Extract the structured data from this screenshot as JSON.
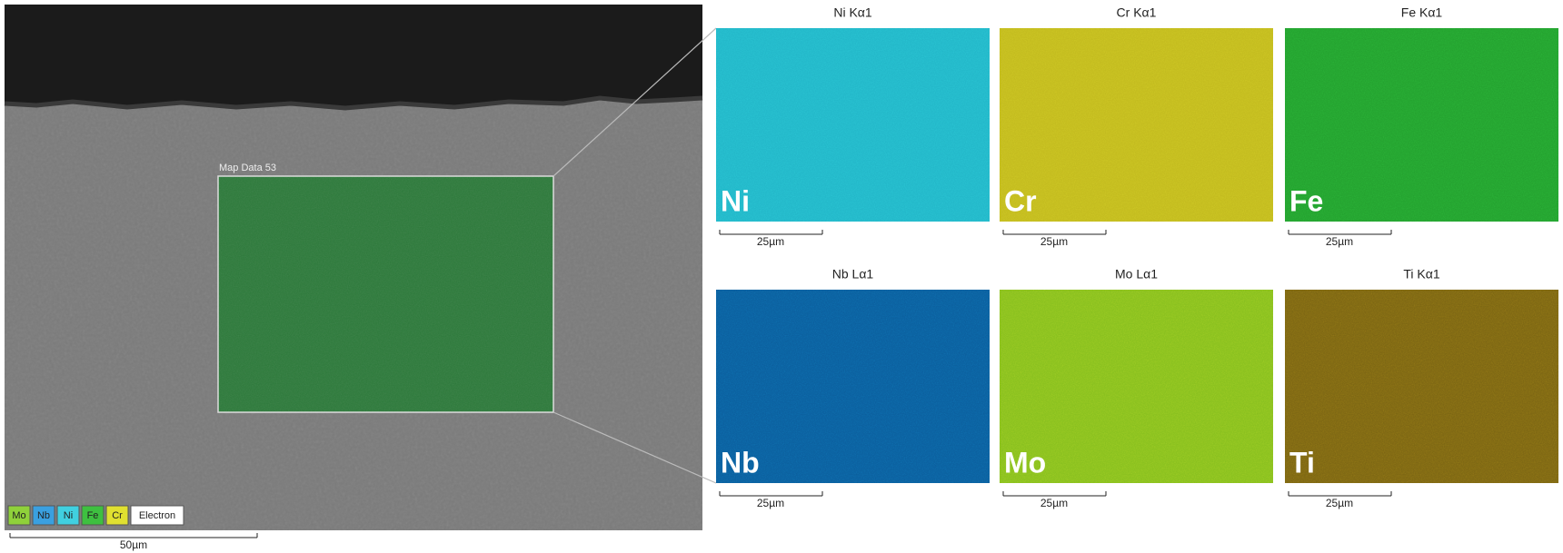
{
  "overview": {
    "map_label": "Map Data 53",
    "scale_label": "50µm",
    "legend": [
      "Mo",
      "Nb",
      "Ni",
      "Fe",
      "Cr",
      "Electron"
    ]
  },
  "maps": [
    {
      "title": "Ni Kα1",
      "symbol": "Ni",
      "scale_label": "25µm"
    },
    {
      "title": "Cr Kα1",
      "symbol": "Cr",
      "scale_label": "25µm"
    },
    {
      "title": "Fe Kα1",
      "symbol": "Fe",
      "scale_label": "25µm"
    },
    {
      "title": "Nb Lα1",
      "symbol": "Nb",
      "scale_label": "25µm"
    },
    {
      "title": "Mo Lα1",
      "symbol": "Mo",
      "scale_label": "25µm"
    },
    {
      "title": "Ti Kα1",
      "symbol": "Ti",
      "scale_label": "25µm"
    }
  ]
}
